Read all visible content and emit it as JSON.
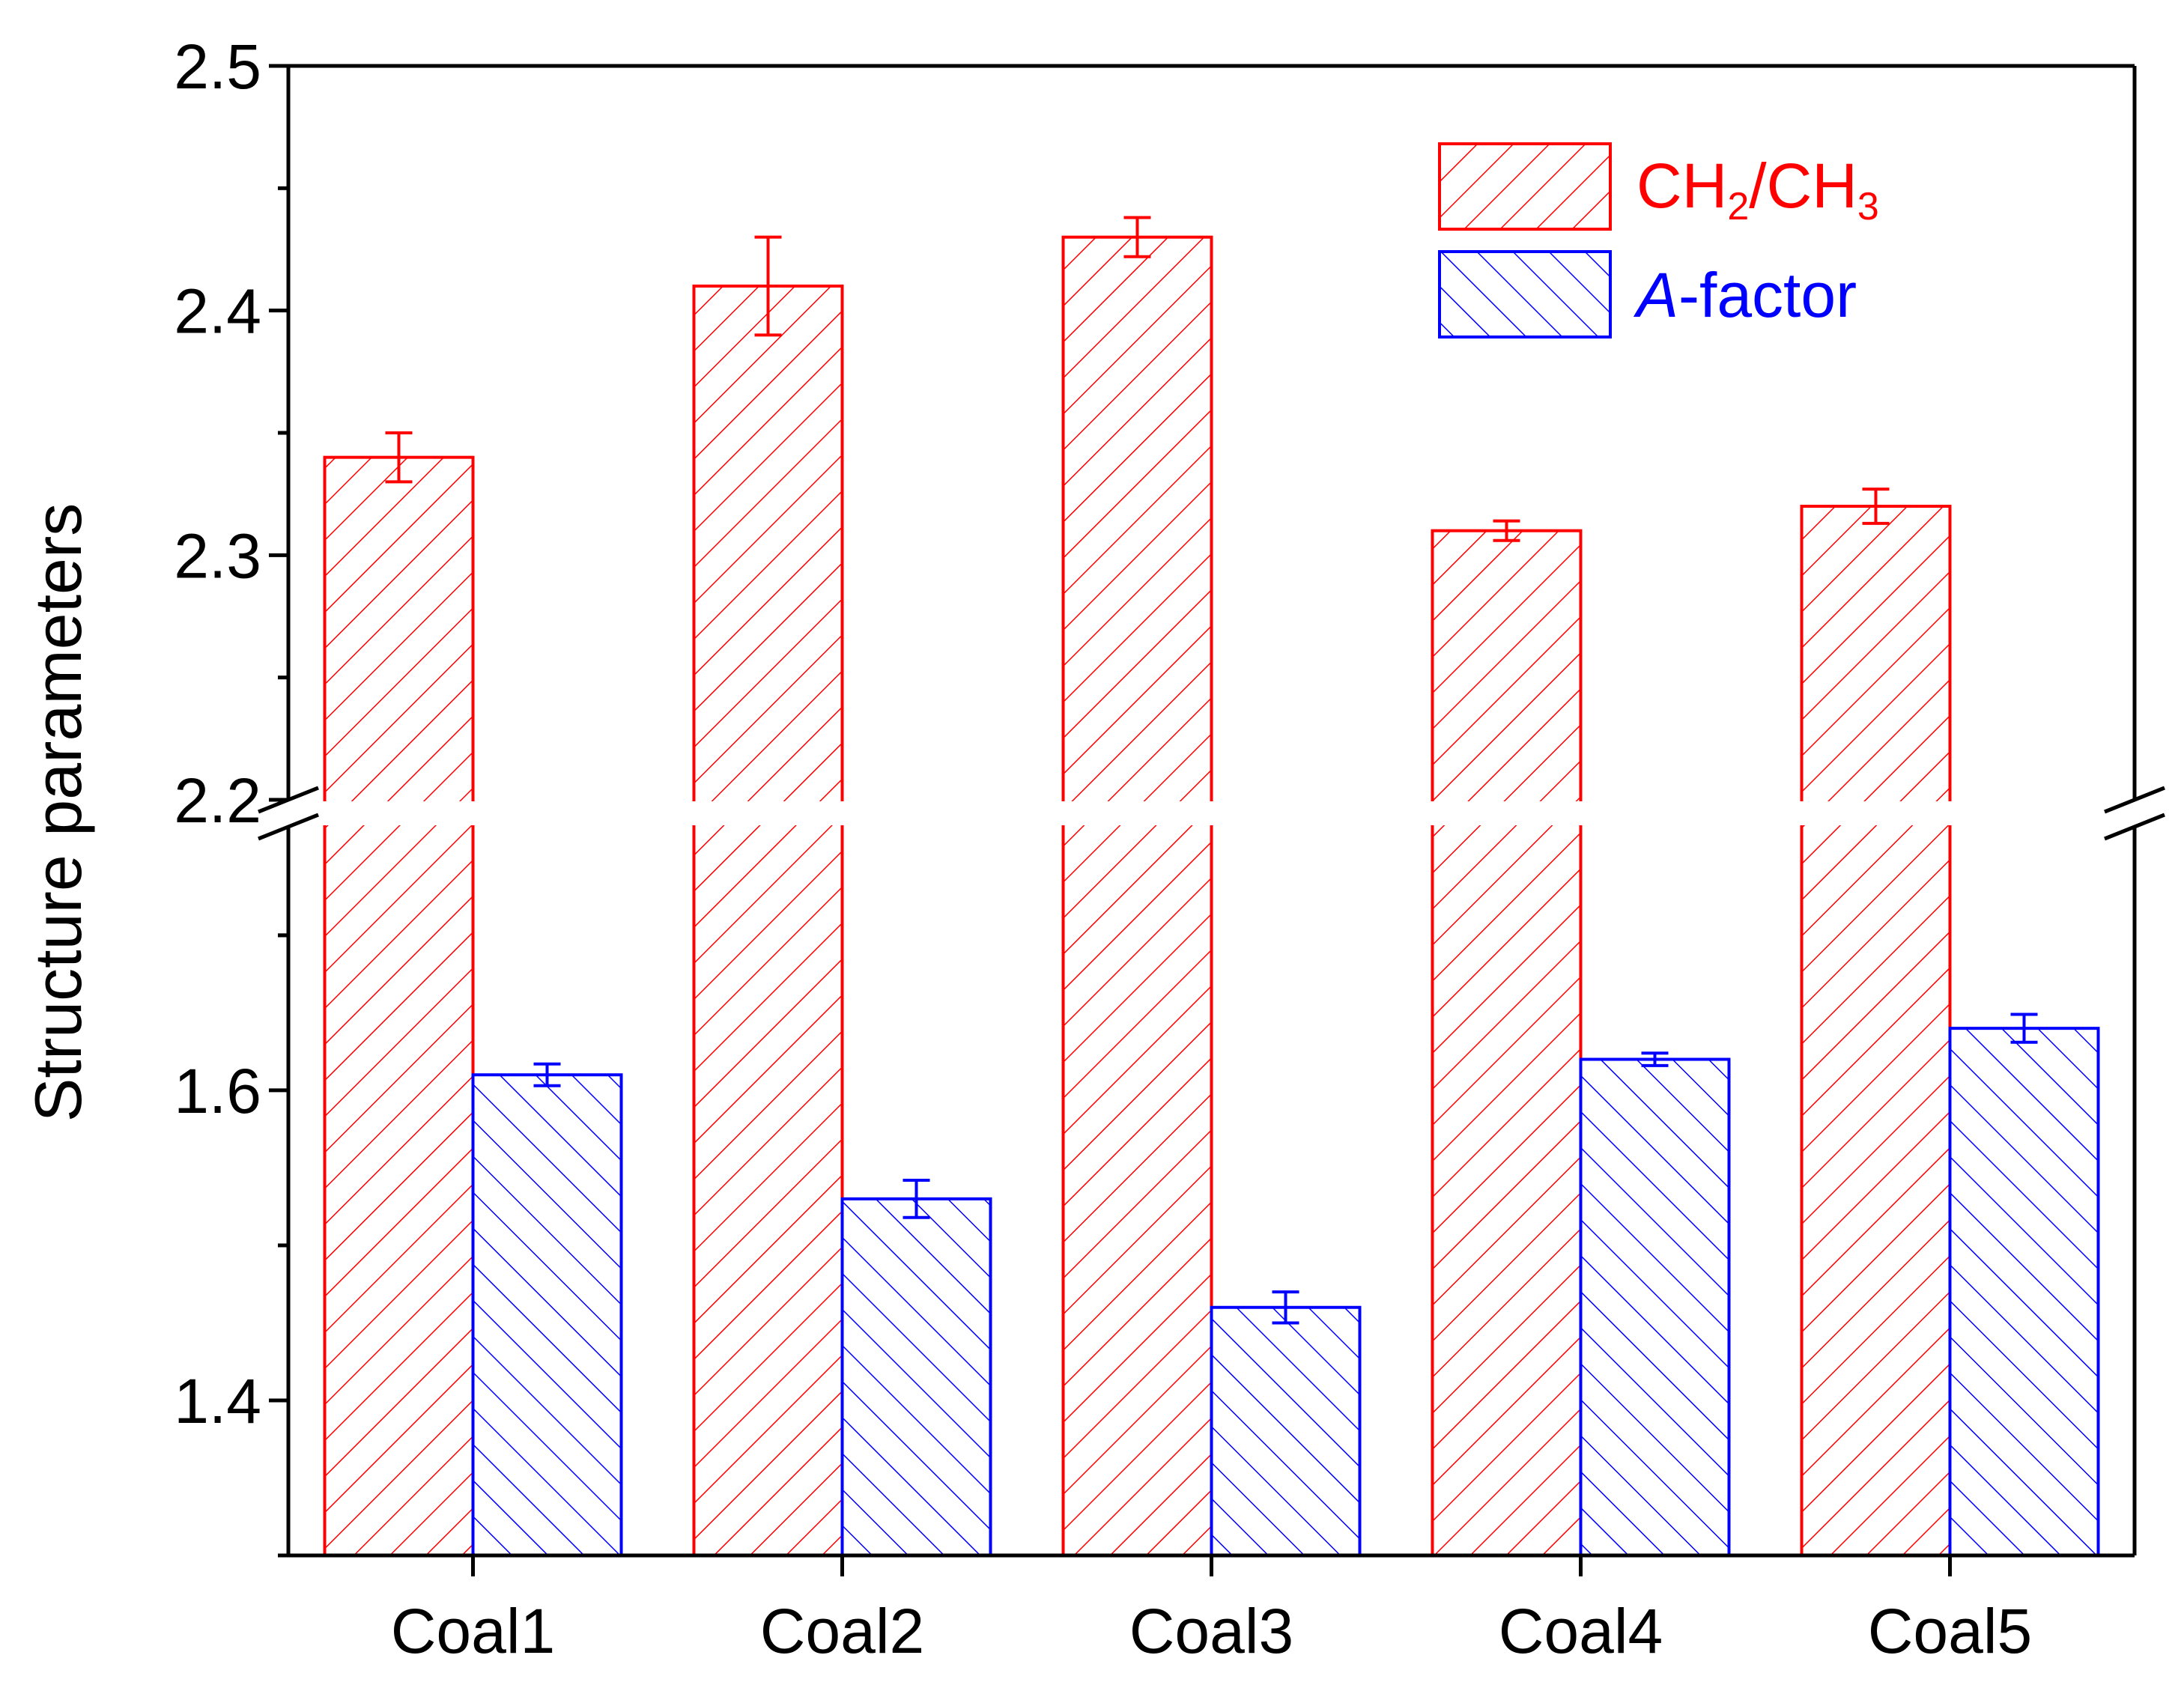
{
  "chart_data": {
    "type": "bar",
    "ylabel": "Structure parameters",
    "xlabel": "",
    "categories": [
      "Coal1",
      "Coal2",
      "Coal3",
      "Coal4",
      "Coal5"
    ],
    "axis_break": true,
    "y_segments": [
      {
        "range": [
          1.3,
          1.77
        ],
        "ticks": [
          1.4,
          1.6
        ],
        "tick_labels": [
          "1.4",
          "1.6"
        ]
      },
      {
        "range": [
          2.2,
          2.5
        ],
        "ticks": [
          2.2,
          2.3,
          2.4,
          2.5
        ],
        "tick_labels": [
          "2.2",
          "2.3",
          "2.4",
          "2.5"
        ]
      }
    ],
    "series": [
      {
        "name_main": "CH",
        "name_sub1": "2",
        "name_mid": "/CH",
        "name_sub2": "3",
        "values": [
          2.34,
          2.41,
          2.43,
          2.31,
          2.32
        ],
        "errors": [
          0.01,
          0.02,
          0.008,
          0.004,
          0.007
        ],
        "color": "#ff0000",
        "hatch": "forward"
      },
      {
        "name_italic": "A",
        "name_rest": "-factor",
        "values": [
          1.61,
          1.53,
          1.46,
          1.62,
          1.64
        ],
        "errors": [
          0.007,
          0.012,
          0.01,
          0.004,
          0.009
        ],
        "color": "#0000ff",
        "hatch": "backward"
      }
    ],
    "legend_position": "top-right"
  }
}
